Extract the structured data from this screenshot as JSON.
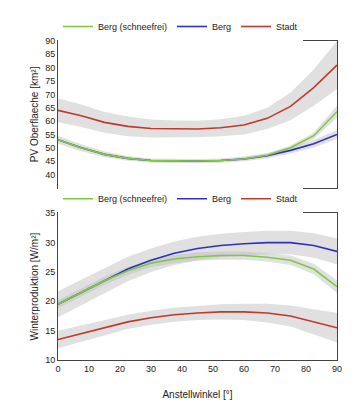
{
  "chart_data": [
    {
      "type": "line",
      "x": [
        0,
        7.5,
        15,
        22.5,
        30,
        37.5,
        45,
        52.5,
        60,
        67.5,
        75,
        82.5,
        90
      ],
      "xlim": [
        0,
        90
      ],
      "xticks": [
        0,
        10,
        20,
        30,
        40,
        50,
        60,
        70,
        80,
        90
      ],
      "ylabel": "PV Oberflaeche [km²]",
      "ylim": [
        35,
        90
      ],
      "yticks": [
        40,
        45,
        50,
        55,
        60,
        65,
        70,
        75,
        80,
        85,
        90
      ],
      "grid": false,
      "legend": "top",
      "tick_labels": "y",
      "series": [
        {
          "name": "Stadt",
          "color": "#c0392b",
          "values": [
            64.0,
            62.0,
            59.5,
            58.0,
            57.2,
            57.0,
            57.0,
            57.5,
            58.5,
            61.0,
            65.5,
            72.5,
            81.0
          ],
          "lower": [
            59.5,
            57.8,
            55.6,
            54.3,
            53.8,
            53.8,
            53.9,
            54.3,
            55.0,
            57.0,
            60.3,
            65.7,
            72.0
          ],
          "upper": [
            68.5,
            66.2,
            63.4,
            61.7,
            60.6,
            60.2,
            60.1,
            60.7,
            62.0,
            65.0,
            70.7,
            79.3,
            90.0
          ]
        },
        {
          "name": "Berg",
          "color": "#3030c0",
          "values": [
            53.0,
            50.0,
            47.5,
            46.0,
            45.2,
            45.0,
            45.0,
            45.2,
            45.8,
            47.0,
            49.0,
            51.5,
            55.0
          ],
          "lower": [
            51.5,
            48.7,
            46.4,
            45.1,
            44.4,
            44.2,
            44.2,
            44.4,
            44.9,
            46.0,
            47.8,
            50.1,
            53.3
          ],
          "upper": [
            54.5,
            51.3,
            48.6,
            46.9,
            46.0,
            45.8,
            45.8,
            46.0,
            46.7,
            48.0,
            50.2,
            52.9,
            56.7
          ]
        },
        {
          "name": "Berg (schneefrei)",
          "color": "#80c840",
          "values": [
            53.0,
            50.0,
            47.5,
            46.0,
            45.2,
            45.0,
            45.0,
            45.2,
            45.8,
            47.2,
            50.0,
            54.5,
            63.5
          ],
          "lower": [
            52.5,
            49.5,
            47.0,
            45.6,
            44.8,
            44.6,
            44.6,
            44.8,
            45.3,
            46.6,
            49.2,
            53.3,
            61.3
          ],
          "upper": [
            53.5,
            50.5,
            48.0,
            46.4,
            45.6,
            45.4,
            45.4,
            45.6,
            46.3,
            47.8,
            50.8,
            55.7,
            65.7
          ]
        }
      ]
    },
    {
      "type": "line",
      "x": [
        0,
        7.5,
        15,
        22.5,
        30,
        37.5,
        45,
        52.5,
        60,
        67.5,
        75,
        82.5,
        90
      ],
      "xlim": [
        0,
        90
      ],
      "xticks": [
        0,
        10,
        20,
        30,
        40,
        50,
        60,
        70,
        80,
        90
      ],
      "xlabel": "Anstellwinkel [°]",
      "ylabel": "Winterproduktion [W/m²]",
      "ylim": [
        10,
        35
      ],
      "yticks": [
        10,
        15,
        20,
        25,
        30,
        35
      ],
      "grid": false,
      "legend": "top",
      "series": [
        {
          "name": "Stadt",
          "color": "#c0392b",
          "values": [
            13.5,
            14.5,
            15.5,
            16.5,
            17.2,
            17.7,
            18.0,
            18.2,
            18.2,
            18.0,
            17.5,
            16.5,
            15.5
          ],
          "lower": [
            12.0,
            13.1,
            14.2,
            15.3,
            16.0,
            16.5,
            16.8,
            16.9,
            16.8,
            16.4,
            15.7,
            14.4,
            13.0
          ],
          "upper": [
            15.0,
            15.9,
            16.8,
            17.7,
            18.4,
            18.9,
            19.2,
            19.5,
            19.6,
            19.6,
            19.3,
            18.6,
            18.0
          ]
        },
        {
          "name": "Berg",
          "color": "#3030c0",
          "values": [
            19.5,
            21.5,
            23.5,
            25.5,
            27.0,
            28.2,
            29.0,
            29.5,
            29.8,
            30.0,
            30.0,
            29.5,
            28.5
          ],
          "lower": [
            17.3,
            19.3,
            21.4,
            23.4,
            25.0,
            26.2,
            27.0,
            27.5,
            27.8,
            28.0,
            28.0,
            27.4,
            26.3
          ],
          "upper": [
            21.7,
            23.7,
            25.6,
            27.6,
            29.0,
            30.2,
            31.0,
            31.5,
            31.8,
            32.0,
            32.0,
            31.6,
            30.7
          ]
        },
        {
          "name": "Berg (schneefrei)",
          "color": "#80c840",
          "values": [
            19.5,
            21.5,
            23.5,
            25.2,
            26.5,
            27.2,
            27.6,
            27.8,
            27.8,
            27.5,
            27.0,
            25.5,
            22.5
          ],
          "lower": [
            18.8,
            20.8,
            22.8,
            24.5,
            25.8,
            26.5,
            26.9,
            27.1,
            27.1,
            26.8,
            26.2,
            24.6,
            21.4
          ],
          "upper": [
            20.2,
            22.2,
            24.2,
            25.9,
            27.2,
            27.9,
            28.3,
            28.5,
            28.5,
            28.2,
            27.8,
            26.4,
            23.6
          ]
        }
      ]
    }
  ]
}
